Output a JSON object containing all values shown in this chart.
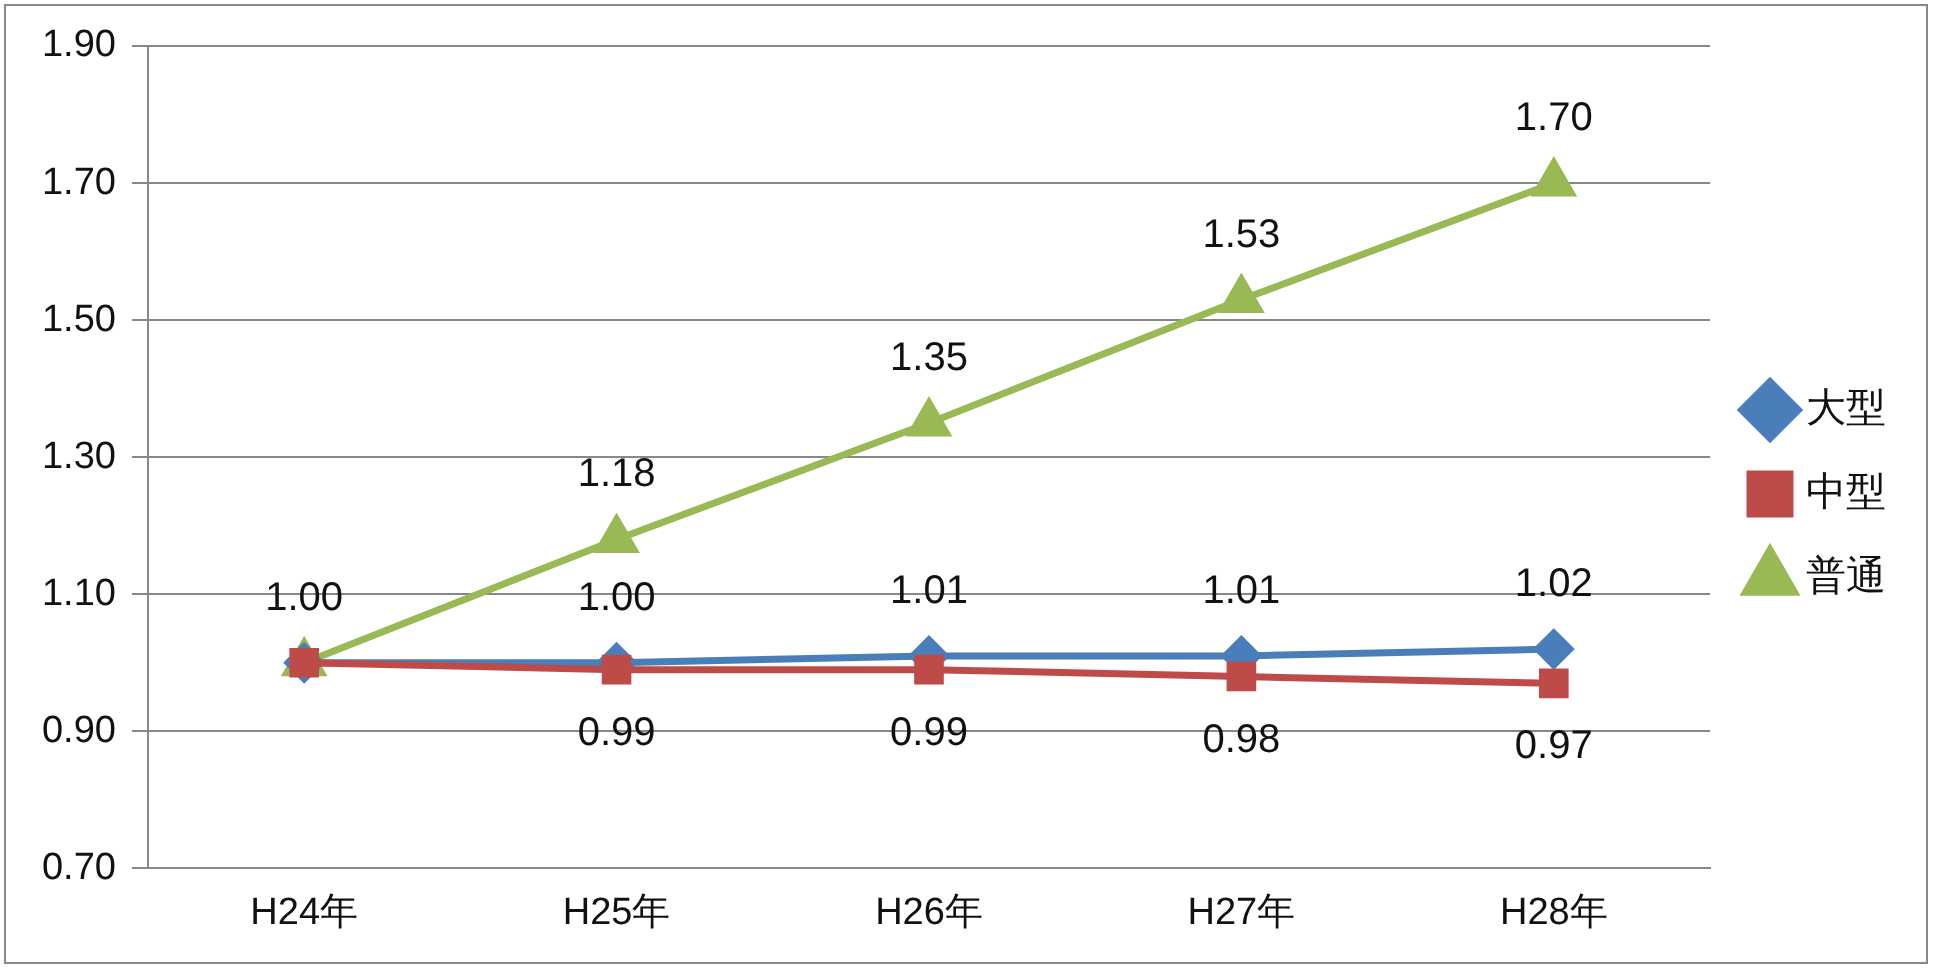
{
  "chart_data": {
    "type": "line",
    "categories": [
      "H24年",
      "H25年",
      "H26年",
      "H27年",
      "H28年"
    ],
    "series": [
      {
        "name": "大型",
        "color": "#4a7ebb",
        "marker": "diamond",
        "values": [
          1.0,
          1.0,
          1.01,
          1.01,
          1.02
        ],
        "value_labels": [
          null,
          "1.00",
          "1.01",
          "1.01",
          "1.02"
        ]
      },
      {
        "name": "中型",
        "color": "#be4b48",
        "marker": "square",
        "values": [
          1.0,
          0.99,
          0.99,
          0.98,
          0.97
        ],
        "value_labels": [
          null,
          "0.99",
          "0.99",
          "0.98",
          "0.97"
        ]
      },
      {
        "name": "普通",
        "color": "#98b954",
        "marker": "triangle",
        "values": [
          1.0,
          1.18,
          1.35,
          1.53,
          1.7
        ],
        "value_labels": [
          "1.00",
          "1.18",
          "1.35",
          "1.53",
          "1.70"
        ]
      }
    ],
    "ylim": [
      0.7,
      1.9
    ],
    "yticks": [
      {
        "value": 0.7,
        "label": "0.70"
      },
      {
        "value": 0.9,
        "label": "0.90"
      },
      {
        "value": 1.1,
        "label": "1.10"
      },
      {
        "value": 1.3,
        "label": "1.30"
      },
      {
        "value": 1.5,
        "label": "1.50"
      },
      {
        "value": 1.7,
        "label": "1.70"
      },
      {
        "value": 1.9,
        "label": "1.90"
      }
    ],
    "grid": "y",
    "legend": "right",
    "line_style": "solid"
  }
}
